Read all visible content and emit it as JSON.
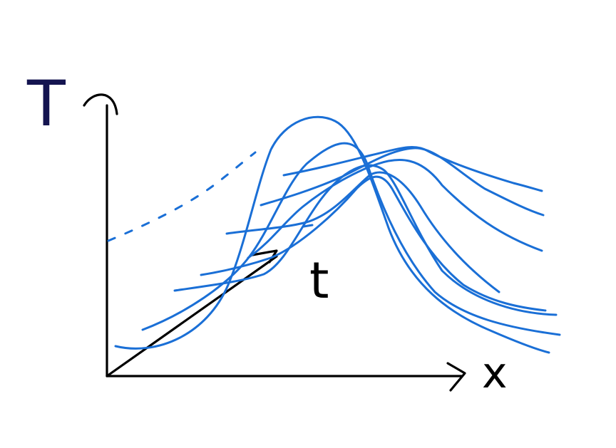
{
  "labels": {
    "y_axis": "T",
    "x_axis": "x",
    "time_axis": "t"
  },
  "colors": {
    "axes": "#000000",
    "curves": "#1a6fd6",
    "y_label": "#141450",
    "background": "#ffffff"
  },
  "curve_count": 8
}
